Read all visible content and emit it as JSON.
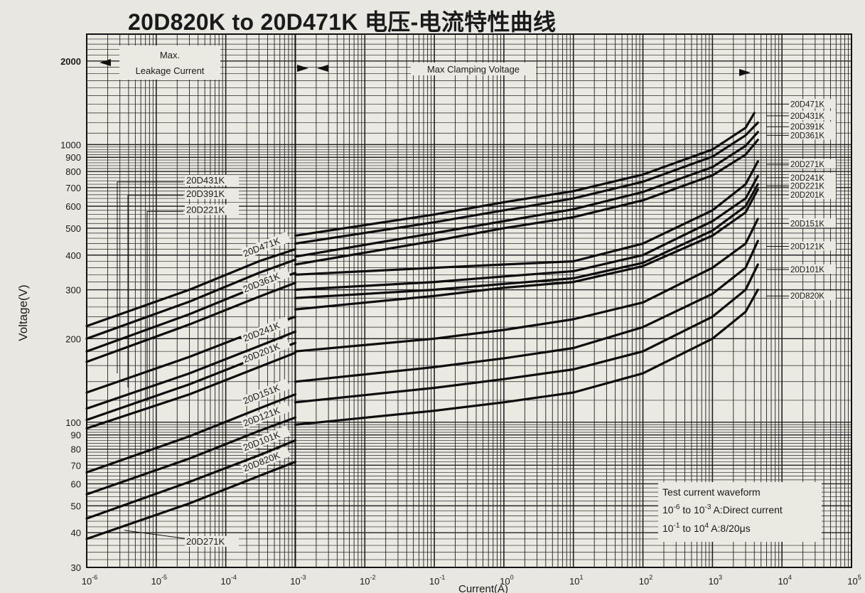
{
  "chart_data": {
    "type": "line",
    "title": "20D820K to 20D471K 电压-电流特性曲线",
    "xlabel": "Current(A)",
    "ylabel": "Voltage(V)",
    "x_scale": "log",
    "y_scale": "log",
    "xlim": [
      1e-06,
      100000
    ],
    "ylim": [
      30,
      2500
    ],
    "x_ticks": [
      {
        "value": 1e-06,
        "base": "10",
        "exp": "-6"
      },
      {
        "value": 1e-05,
        "base": "10",
        "exp": "-5"
      },
      {
        "value": 0.0001,
        "base": "10",
        "exp": "-4"
      },
      {
        "value": 0.001,
        "base": "10",
        "exp": "-3"
      },
      {
        "value": 0.01,
        "base": "10",
        "exp": "-2"
      },
      {
        "value": 0.1,
        "base": "10",
        "exp": "-1"
      },
      {
        "value": 1,
        "base": "10",
        "exp": "0"
      },
      {
        "value": 10,
        "base": "10",
        "exp": "1"
      },
      {
        "value": 100,
        "base": "10",
        "exp": "2"
      },
      {
        "value": 1000,
        "base": "10",
        "exp": "3"
      },
      {
        "value": 10000,
        "base": "10",
        "exp": "4"
      },
      {
        "value": 100000,
        "base": "10",
        "exp": "5"
      }
    ],
    "y_ticks": [
      {
        "value": 30,
        "label": "30"
      },
      {
        "value": 40,
        "label": "40"
      },
      {
        "value": 50,
        "label": "50"
      },
      {
        "value": 60,
        "label": "60"
      },
      {
        "value": 70,
        "label": "70"
      },
      {
        "value": 80,
        "label": "80"
      },
      {
        "value": 90,
        "label": "90"
      },
      {
        "value": 100,
        "label": "100"
      },
      {
        "value": 200,
        "label": "200"
      },
      {
        "value": 300,
        "label": "300"
      },
      {
        "value": 400,
        "label": "400"
      },
      {
        "value": 500,
        "label": "500"
      },
      {
        "value": 600,
        "label": "600"
      },
      {
        "value": 700,
        "label": "700"
      },
      {
        "value": 800,
        "label": "800"
      },
      {
        "value": 900,
        "label": "900"
      },
      {
        "value": 1000,
        "label": "1000"
      },
      {
        "value": 2000,
        "label": "2000"
      }
    ],
    "grid": true,
    "regions": {
      "leakage": {
        "label": "Max.\nLeakage Current",
        "x_range": [
          1e-06,
          0.001
        ]
      },
      "clamping": {
        "label": "Max Clamping Voltage",
        "x_range": [
          0.001,
          5000
        ]
      }
    },
    "leakage_series": [
      {
        "name": "20D471K",
        "label_text": "20D471K",
        "points": [
          [
            1e-06,
            222
          ],
          [
            3e-05,
            300
          ],
          [
            0.0003,
            380
          ],
          [
            0.001,
            420
          ]
        ]
      },
      {
        "name": "20D431K",
        "label_text": "",
        "points": [
          [
            1e-06,
            200
          ],
          [
            3e-05,
            272
          ],
          [
            0.0003,
            345
          ],
          [
            0.001,
            385
          ]
        ]
      },
      {
        "name": "20D391K",
        "label_text": "",
        "points": [
          [
            1e-06,
            180
          ],
          [
            3e-05,
            245
          ],
          [
            0.0003,
            310
          ],
          [
            0.001,
            345
          ]
        ]
      },
      {
        "name": "20D361K",
        "label_text": "20D361K",
        "points": [
          [
            1e-06,
            165
          ],
          [
            3e-05,
            225
          ],
          [
            0.0003,
            283
          ],
          [
            0.001,
            318
          ]
        ]
      },
      {
        "name": "20D271K",
        "label_text": "",
        "points": [
          [
            1e-06,
            128
          ],
          [
            3e-05,
            172
          ],
          [
            0.0003,
            215
          ],
          [
            0.001,
            240
          ]
        ]
      },
      {
        "name": "20D241K",
        "label_text": "20D241K",
        "points": [
          [
            1e-06,
            112
          ],
          [
            3e-05,
            150
          ],
          [
            0.0003,
            188
          ],
          [
            0.001,
            212
          ]
        ]
      },
      {
        "name": "20D221K",
        "label_text": "",
        "points": [
          [
            1e-06,
            102
          ],
          [
            3e-05,
            137
          ],
          [
            0.0003,
            172
          ],
          [
            0.001,
            193
          ]
        ]
      },
      {
        "name": "20D201K",
        "label_text": "20D201K",
        "points": [
          [
            1e-06,
            95
          ],
          [
            3e-05,
            126
          ],
          [
            0.0003,
            158
          ],
          [
            0.001,
            178
          ]
        ]
      },
      {
        "name": "20D151K",
        "label_text": "20D151K",
        "points": [
          [
            1e-06,
            66
          ],
          [
            3e-05,
            89
          ],
          [
            0.0003,
            112
          ],
          [
            0.001,
            126
          ]
        ]
      },
      {
        "name": "20D121K",
        "label_text": "20D121K",
        "points": [
          [
            1e-06,
            55
          ],
          [
            3e-05,
            74
          ],
          [
            0.0003,
            93
          ],
          [
            0.001,
            104
          ]
        ]
      },
      {
        "name": "20D101K",
        "label_text": "20D101K",
        "points": [
          [
            1e-06,
            45
          ],
          [
            3e-05,
            61
          ],
          [
            0.0003,
            76
          ],
          [
            0.001,
            86
          ]
        ]
      },
      {
        "name": "20D820K",
        "label_text": "20D820K",
        "points": [
          [
            1e-06,
            38
          ],
          [
            3e-05,
            51
          ],
          [
            0.0003,
            64
          ],
          [
            0.001,
            72
          ]
        ]
      }
    ],
    "clamping_series": [
      {
        "name": "20D471K",
        "points": [
          [
            0.001,
            470
          ],
          [
            0.1,
            560
          ],
          [
            1,
            620
          ],
          [
            10,
            680
          ],
          [
            100,
            780
          ],
          [
            1000,
            960
          ],
          [
            3000,
            1150
          ],
          [
            4000,
            1300
          ]
        ]
      },
      {
        "name": "20D431K",
        "points": [
          [
            0.001,
            440
          ],
          [
            0.1,
            525
          ],
          [
            1,
            580
          ],
          [
            10,
            640
          ],
          [
            100,
            735
          ],
          [
            1000,
            905
          ],
          [
            3000,
            1080
          ],
          [
            4500,
            1200
          ]
        ]
      },
      {
        "name": "20D391K",
        "points": [
          [
            0.001,
            395
          ],
          [
            0.1,
            480
          ],
          [
            1,
            530
          ],
          [
            10,
            585
          ],
          [
            100,
            675
          ],
          [
            1000,
            830
          ],
          [
            3000,
            990
          ],
          [
            4500,
            1110
          ]
        ]
      },
      {
        "name": "20D361K",
        "points": [
          [
            0.001,
            370
          ],
          [
            0.1,
            450
          ],
          [
            1,
            500
          ],
          [
            10,
            548
          ],
          [
            100,
            630
          ],
          [
            1000,
            775
          ],
          [
            3000,
            920
          ],
          [
            4500,
            1040
          ]
        ]
      },
      {
        "name": "20D271K",
        "points": [
          [
            0.001,
            340
          ],
          [
            0.1,
            360
          ],
          [
            1,
            370
          ],
          [
            10,
            380
          ],
          [
            100,
            440
          ],
          [
            1000,
            580
          ],
          [
            3000,
            720
          ],
          [
            4500,
            870
          ]
        ]
      },
      {
        "name": "20D241K",
        "points": [
          [
            0.001,
            300
          ],
          [
            0.1,
            320
          ],
          [
            1,
            335
          ],
          [
            10,
            350
          ],
          [
            100,
            400
          ],
          [
            1000,
            530
          ],
          [
            3000,
            640
          ],
          [
            4500,
            770
          ]
        ]
      },
      {
        "name": "20D221K",
        "points": [
          [
            0.001,
            280
          ],
          [
            0.1,
            300
          ],
          [
            1,
            315
          ],
          [
            10,
            330
          ],
          [
            100,
            375
          ],
          [
            1000,
            490
          ],
          [
            3000,
            600
          ],
          [
            4500,
            720
          ]
        ]
      },
      {
        "name": "20D201K",
        "points": [
          [
            0.001,
            255
          ],
          [
            0.1,
            285
          ],
          [
            1,
            305
          ],
          [
            10,
            320
          ],
          [
            100,
            365
          ],
          [
            1000,
            470
          ],
          [
            3000,
            570
          ],
          [
            4500,
            690
          ]
        ]
      },
      {
        "name": "20D151K",
        "points": [
          [
            0.001,
            180
          ],
          [
            0.1,
            200
          ],
          [
            1,
            215
          ],
          [
            10,
            235
          ],
          [
            100,
            270
          ],
          [
            1000,
            360
          ],
          [
            3000,
            440
          ],
          [
            4500,
            540
          ]
        ]
      },
      {
        "name": "20D121K",
        "points": [
          [
            0.001,
            140
          ],
          [
            0.1,
            158
          ],
          [
            1,
            170
          ],
          [
            10,
            185
          ],
          [
            100,
            220
          ],
          [
            1000,
            290
          ],
          [
            3000,
            360
          ],
          [
            4500,
            450
          ]
        ]
      },
      {
        "name": "20D101K",
        "points": [
          [
            0.001,
            118
          ],
          [
            0.1,
            133
          ],
          [
            1,
            143
          ],
          [
            10,
            155
          ],
          [
            100,
            180
          ],
          [
            1000,
            240
          ],
          [
            3000,
            300
          ],
          [
            4500,
            370
          ]
        ]
      },
      {
        "name": "20D820K",
        "points": [
          [
            0.001,
            98
          ],
          [
            0.1,
            110
          ],
          [
            1,
            118
          ],
          [
            10,
            128
          ],
          [
            100,
            150
          ],
          [
            1000,
            200
          ],
          [
            3000,
            250
          ],
          [
            4500,
            300
          ]
        ]
      }
    ],
    "right_labels": [
      {
        "text": "20D471K",
        "y": 1400
      },
      {
        "text": "20D431K",
        "y": 1270
      },
      {
        "text": "20D391K",
        "y": 1160
      },
      {
        "text": "20D361K",
        "y": 1080
      },
      {
        "text": "20D271K",
        "y": 850
      },
      {
        "text": "20D241K",
        "y": 760
      },
      {
        "text": "20D221K",
        "y": 710
      },
      {
        "text": "20D201K",
        "y": 660
      },
      {
        "text": "20D151K",
        "y": 520
      },
      {
        "text": "20D121K",
        "y": 430
      },
      {
        "text": "20D101K",
        "y": 355
      },
      {
        "text": "20D820K",
        "y": 285
      }
    ],
    "left_callouts": [
      {
        "text": "20D431K",
        "y": 760
      },
      {
        "text": "20D391K",
        "y": 680
      },
      {
        "text": "20D221K",
        "y": 595
      },
      {
        "text": "20D271K",
        "y": 38
      }
    ],
    "legend_box": {
      "title": "Test current waveform",
      "line1": {
        "base": "10",
        "exp1": "-6",
        "mid": " to 10",
        "exp2": "-3",
        "tail": " A:Direct current"
      },
      "line2": {
        "base": "10",
        "exp1": "-1",
        "mid": " to 10",
        "exp2": "4",
        "tail": " A:8/20μs"
      }
    }
  }
}
